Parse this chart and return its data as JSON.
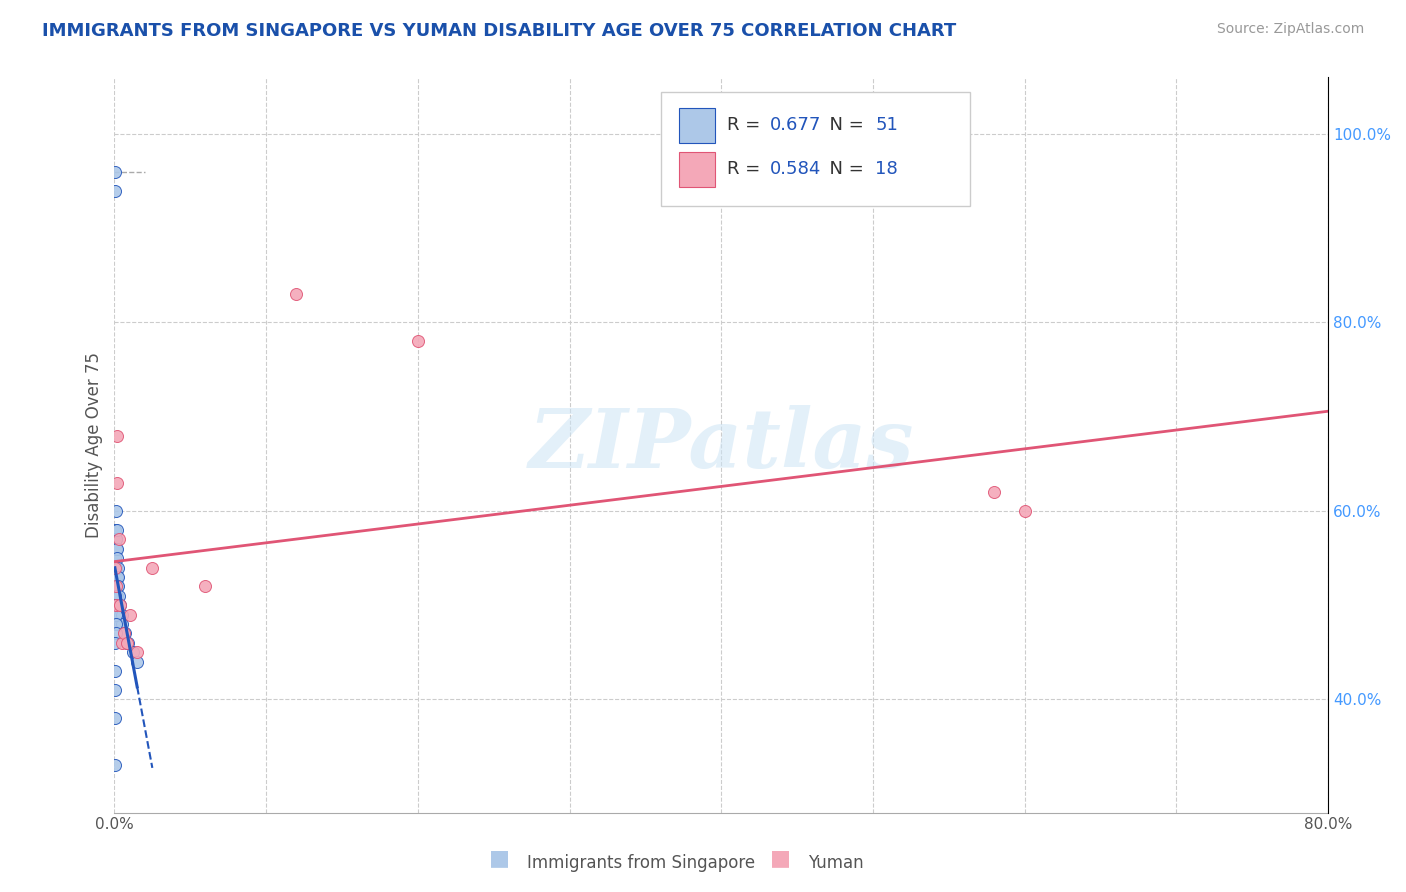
{
  "title": "IMMIGRANTS FROM SINGAPORE VS YUMAN DISABILITY AGE OVER 75 CORRELATION CHART",
  "source": "Source: ZipAtlas.com",
  "ylabel": "Disability Age Over 75",
  "watermark": "ZIPatlas",
  "series1_label": "Immigrants from Singapore",
  "series2_label": "Yuman",
  "r1": 0.677,
  "n1": 51,
  "r2": 0.584,
  "n2": 18,
  "color1": "#adc8e8",
  "color2": "#f4a8b8",
  "trendline1_color": "#2255bb",
  "trendline2_color": "#e05575",
  "title_color": "#1a50aa",
  "source_color": "#999999",
  "xlim": [
    0.0,
    0.8
  ],
  "ylim": [
    0.28,
    1.06
  ],
  "xticks": [
    0.0,
    0.1,
    0.2,
    0.3,
    0.4,
    0.5,
    0.6,
    0.7,
    0.8
  ],
  "xticklabels": [
    "0.0%",
    "",
    "",
    "",
    "",
    "",
    "",
    "",
    "80.0%"
  ],
  "yticks_right": [
    0.4,
    0.6,
    0.8,
    1.0
  ],
  "yticklabels_right": [
    "40.0%",
    "60.0%",
    "80.0%",
    "100.0%"
  ],
  "scatter1_x": [
    0.0005,
    0.0005,
    0.0006,
    0.0006,
    0.0007,
    0.0007,
    0.0008,
    0.0008,
    0.0009,
    0.0009,
    0.001,
    0.001,
    0.001,
    0.001,
    0.0012,
    0.0013,
    0.0013,
    0.0014,
    0.0015,
    0.0016,
    0.0017,
    0.0018,
    0.0018,
    0.002,
    0.002,
    0.0022,
    0.0023,
    0.0025,
    0.003,
    0.0032,
    0.0035,
    0.004,
    0.004,
    0.005,
    0.005,
    0.006,
    0.007,
    0.008,
    0.009,
    0.012,
    0.015,
    0.0006,
    0.0007,
    0.0008,
    0.0009,
    0.001,
    0.0005,
    0.0005,
    0.0004,
    0.0004,
    0.0003
  ],
  "scatter1_y": [
    0.96,
    0.94,
    0.58,
    0.55,
    0.53,
    0.52,
    0.51,
    0.5,
    0.6,
    0.57,
    0.54,
    0.53,
    0.52,
    0.5,
    0.57,
    0.56,
    0.54,
    0.53,
    0.52,
    0.51,
    0.58,
    0.56,
    0.53,
    0.55,
    0.52,
    0.54,
    0.53,
    0.52,
    0.51,
    0.5,
    0.49,
    0.5,
    0.48,
    0.49,
    0.48,
    0.47,
    0.47,
    0.46,
    0.46,
    0.45,
    0.44,
    0.51,
    0.5,
    0.49,
    0.48,
    0.47,
    0.46,
    0.43,
    0.41,
    0.38,
    0.33
  ],
  "scatter2_x": [
    0.0005,
    0.0008,
    0.001,
    0.0015,
    0.002,
    0.003,
    0.004,
    0.005,
    0.006,
    0.008,
    0.01,
    0.015,
    0.025,
    0.06,
    0.12,
    0.2,
    0.58,
    0.6
  ],
  "scatter2_y": [
    0.54,
    0.5,
    0.52,
    0.68,
    0.63,
    0.57,
    0.5,
    0.46,
    0.47,
    0.46,
    0.49,
    0.45,
    0.54,
    0.52,
    0.83,
    0.78,
    0.62,
    0.6
  ],
  "grid_color": "#cccccc",
  "bg_color": "#ffffff",
  "legend_color": "#2255bb",
  "ytick_color": "#4499ff"
}
